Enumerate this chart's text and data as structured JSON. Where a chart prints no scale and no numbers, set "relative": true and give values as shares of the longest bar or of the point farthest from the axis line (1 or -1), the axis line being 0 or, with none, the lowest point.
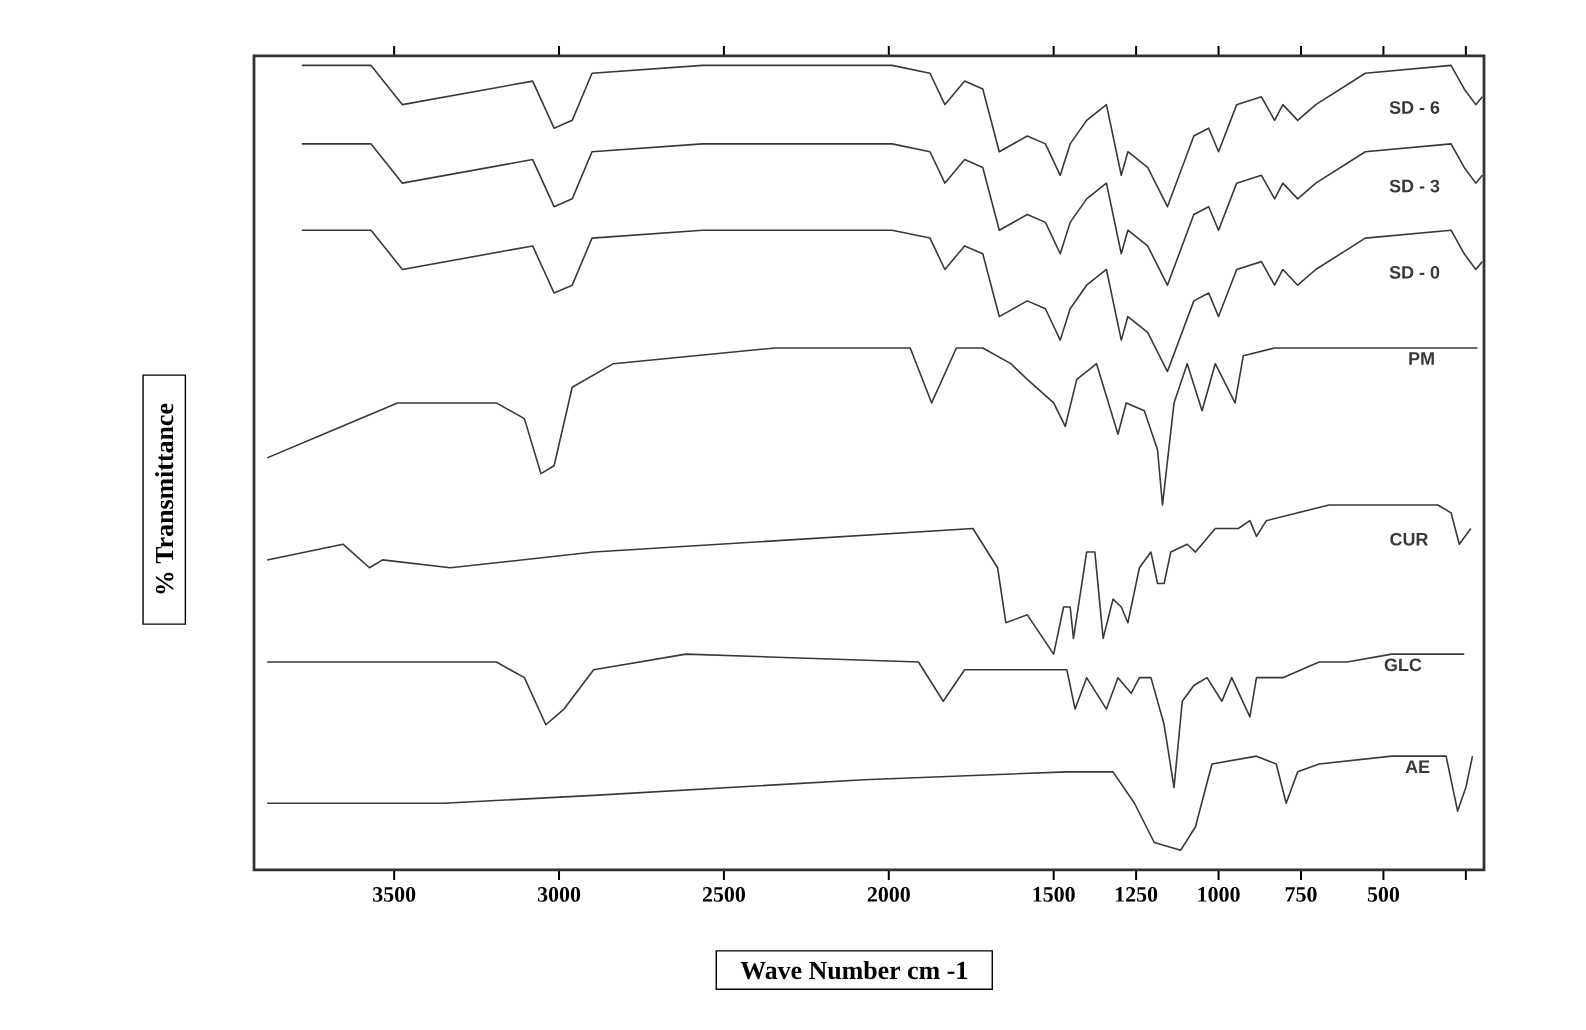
{
  "chart_data": {
    "type": "line",
    "xlabel": "Wave Number cm -1",
    "ylabel": "% Transmittance",
    "relative": true,
    "xlim": [
      3925,
      195
    ],
    "xticks": [
      3500,
      3000,
      2500,
      2000,
      1500,
      1250,
      1000,
      750,
      500,
      {
        "value": 250,
        "label": null
      }
    ],
    "line_style": "solid",
    "series": [
      {
        "name": "SD - 6",
        "color": "#383838",
        "x": [
          3780,
          3570,
          3475,
          3080,
          3015,
          2960,
          2900,
          2565,
          1990,
          1875,
          1830,
          1770,
          1715,
          1665,
          1580,
          1525,
          1480,
          1450,
          1400,
          1340,
          1295,
          1275,
          1215,
          1155,
          1075,
          1030,
          1000,
          945,
          870,
          830,
          805,
          760,
          705,
          555,
          295,
          255,
          220,
          200
        ],
        "values": [
          1.0,
          1.0,
          0.95,
          0.98,
          0.92,
          0.93,
          0.99,
          1.0,
          1.0,
          0.99,
          0.95,
          0.98,
          0.97,
          0.89,
          0.91,
          0.9,
          0.86,
          0.9,
          0.93,
          0.95,
          0.86,
          0.89,
          0.87,
          0.82,
          0.91,
          0.92,
          0.89,
          0.95,
          0.96,
          0.93,
          0.95,
          0.93,
          0.95,
          0.99,
          1.0,
          0.97,
          0.95,
          0.96
        ]
      },
      {
        "name": "SD - 3",
        "color": "#383838",
        "x": [
          3780,
          3570,
          3475,
          3080,
          3015,
          2960,
          2900,
          2565,
          1990,
          1875,
          1830,
          1770,
          1715,
          1665,
          1580,
          1525,
          1480,
          1450,
          1400,
          1340,
          1295,
          1275,
          1215,
          1155,
          1075,
          1030,
          1000,
          945,
          870,
          830,
          805,
          760,
          705,
          555,
          295,
          255,
          220,
          200
        ],
        "values": [
          0.9,
          0.9,
          0.85,
          0.88,
          0.82,
          0.83,
          0.89,
          0.9,
          0.9,
          0.89,
          0.85,
          0.88,
          0.87,
          0.79,
          0.81,
          0.8,
          0.76,
          0.8,
          0.83,
          0.85,
          0.76,
          0.79,
          0.77,
          0.72,
          0.81,
          0.82,
          0.79,
          0.85,
          0.86,
          0.83,
          0.85,
          0.83,
          0.85,
          0.89,
          0.9,
          0.87,
          0.85,
          0.86
        ]
      },
      {
        "name": "SD - 0",
        "color": "#383838",
        "x": [
          3780,
          3570,
          3475,
          3080,
          3015,
          2960,
          2900,
          2565,
          1990,
          1875,
          1830,
          1770,
          1715,
          1665,
          1580,
          1525,
          1480,
          1450,
          1400,
          1340,
          1295,
          1275,
          1215,
          1155,
          1075,
          1030,
          1000,
          945,
          870,
          830,
          805,
          760,
          705,
          555,
          295,
          255,
          220,
          200
        ],
        "values": [
          0.79,
          0.79,
          0.74,
          0.77,
          0.71,
          0.72,
          0.78,
          0.79,
          0.79,
          0.78,
          0.74,
          0.77,
          0.76,
          0.68,
          0.7,
          0.69,
          0.65,
          0.69,
          0.72,
          0.74,
          0.65,
          0.68,
          0.66,
          0.61,
          0.7,
          0.71,
          0.68,
          0.74,
          0.75,
          0.72,
          0.74,
          0.72,
          0.74,
          0.78,
          0.79,
          0.76,
          0.74,
          0.75
        ]
      },
      {
        "name": "PM",
        "color": "#383838",
        "x": [
          3885,
          3715,
          3490,
          3190,
          3105,
          3055,
          3015,
          2960,
          2835,
          2345,
          1935,
          1870,
          1795,
          1715,
          1630,
          1580,
          1500,
          1465,
          1430,
          1400,
          1370,
          1305,
          1280,
          1225,
          1185,
          1170,
          1135,
          1095,
          1050,
          1010,
          950,
          925,
          830,
          665,
          475,
          215
        ],
        "values": [
          0.5,
          0.53,
          0.57,
          0.57,
          0.55,
          0.48,
          0.49,
          0.59,
          0.62,
          0.64,
          0.64,
          0.57,
          0.64,
          0.64,
          0.62,
          0.6,
          0.57,
          0.54,
          0.6,
          0.61,
          0.62,
          0.53,
          0.57,
          0.56,
          0.51,
          0.44,
          0.57,
          0.62,
          0.56,
          0.62,
          0.57,
          0.63,
          0.64,
          0.64,
          0.64,
          0.64
        ]
      },
      {
        "name": "CUR",
        "color": "#383838",
        "x": [
          3885,
          3655,
          3575,
          3535,
          3330,
          2895,
          1745,
          1670,
          1645,
          1580,
          1500,
          1470,
          1450,
          1440,
          1400,
          1375,
          1350,
          1320,
          1295,
          1275,
          1240,
          1205,
          1185,
          1165,
          1145,
          1095,
          1070,
          1010,
          940,
          905,
          885,
          855,
          665,
          335,
          295,
          270,
          235
        ],
        "values": [
          0.37,
          0.39,
          0.36,
          0.37,
          0.36,
          0.38,
          0.41,
          0.36,
          0.29,
          0.3,
          0.25,
          0.31,
          0.31,
          0.27,
          0.38,
          0.38,
          0.27,
          0.32,
          0.31,
          0.29,
          0.36,
          0.38,
          0.34,
          0.34,
          0.38,
          0.39,
          0.38,
          0.41,
          0.41,
          0.42,
          0.4,
          0.42,
          0.44,
          0.44,
          0.43,
          0.39,
          0.41
        ]
      },
      {
        "name": "GLC",
        "color": "#383838",
        "x": [
          3885,
          3190,
          3105,
          3040,
          2985,
          2895,
          2615,
          1910,
          1835,
          1770,
          1460,
          1435,
          1400,
          1340,
          1305,
          1265,
          1240,
          1205,
          1165,
          1135,
          1110,
          1075,
          1035,
          990,
          960,
          905,
          885,
          805,
          695,
          610,
          475,
          255
        ],
        "values": [
          0.24,
          0.24,
          0.22,
          0.16,
          0.18,
          0.23,
          0.25,
          0.24,
          0.19,
          0.23,
          0.23,
          0.18,
          0.22,
          0.18,
          0.22,
          0.2,
          0.22,
          0.22,
          0.16,
          0.08,
          0.19,
          0.21,
          0.22,
          0.19,
          0.22,
          0.17,
          0.22,
          0.22,
          0.24,
          0.24,
          0.25,
          0.25
        ]
      },
      {
        "name": "AE",
        "color": "#383838",
        "x": [
          3885,
          3350,
          2895,
          2075,
          1460,
          1320,
          1255,
          1195,
          1115,
          1070,
          1020,
          885,
          825,
          795,
          760,
          695,
          475,
          310,
          275,
          250,
          230
        ],
        "values": [
          0.06,
          0.06,
          0.07,
          0.09,
          0.1,
          0.1,
          0.06,
          0.01,
          0.0,
          0.03,
          0.11,
          0.12,
          0.11,
          0.06,
          0.1,
          0.11,
          0.12,
          0.12,
          0.05,
          0.08,
          0.12
        ]
      }
    ]
  }
}
